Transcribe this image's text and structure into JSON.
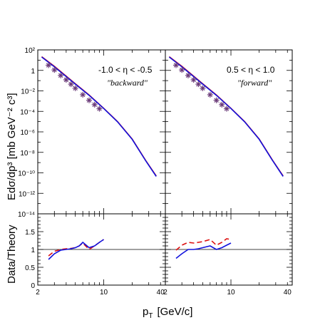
{
  "figure": {
    "xlabel_main": "p",
    "xlabel_sub": "T",
    "xlabel_unit": "[GeV/c]",
    "ylabel_top": "Edσ/dp³  [mb GeV⁻² c³]",
    "ylabel_bottom": "Data/Theory"
  },
  "colors": {
    "theory_red": "#dd1111",
    "theory_blue": "#1111dd",
    "data": "#6a3a78",
    "unity_line": "#000000"
  },
  "chart_data": [
    {
      "id": "top-left",
      "type": "line",
      "annotation": "-1.0 < η < -0.5",
      "annotation_note": "\"backward\"",
      "xscale": "log",
      "yscale": "log",
      "xlim": [
        2,
        45
      ],
      "ylim": [
        1e-14,
        100
      ],
      "xticks": [
        "2",
        "10",
        "40"
      ],
      "yticks": [
        "10²",
        "1",
        "10⁻²",
        "10⁻⁴",
        "10⁻⁶",
        "10⁻⁸",
        "10⁻¹⁰",
        "10⁻¹²",
        "10⁻¹⁴"
      ],
      "series": [
        {
          "style": "solid",
          "color": "red",
          "x": [
            2.2,
            3,
            4,
            5,
            7,
            10,
            14,
            20,
            28,
            36
          ],
          "y": [
            22,
            2.5,
            0.28,
            0.05,
            0.004,
            0.0002,
            1e-05,
            2e-07,
            1.5e-09,
            5e-11
          ]
        },
        {
          "style": "solid",
          "color": "blue",
          "x": [
            2.2,
            3,
            4,
            5,
            7,
            10,
            14,
            20,
            28,
            36
          ],
          "y": [
            20,
            2.2,
            0.25,
            0.046,
            0.0037,
            0.00019,
            9.5e-06,
            1.9e-07,
            1.4e-09,
            4.5e-11
          ]
        }
      ],
      "data_points": {
        "x": [
          2.6,
          3.0,
          3.5,
          4.0,
          4.5,
          5.0,
          6.0,
          7.0,
          8.0,
          9.0
        ],
        "y": [
          3.2,
          1.1,
          0.32,
          0.12,
          0.045,
          0.018,
          0.0042,
          0.0012,
          0.00045,
          0.00018
        ]
      }
    },
    {
      "id": "top-right",
      "type": "line",
      "annotation": "0.5 < η < 1.0",
      "annotation_note": "\"forward\"",
      "xscale": "log",
      "yscale": "log",
      "xlim": [
        2,
        45
      ],
      "ylim": [
        1e-14,
        100
      ],
      "xticks": [
        "2",
        "10",
        "40"
      ],
      "series": [
        {
          "style": "solid",
          "color": "red",
          "x": [
            2.2,
            3,
            4,
            5,
            7,
            10,
            14,
            20,
            28,
            36
          ],
          "y": [
            22,
            2.5,
            0.28,
            0.05,
            0.004,
            0.0002,
            1e-05,
            2e-07,
            1.5e-09,
            5e-11
          ]
        },
        {
          "style": "solid",
          "color": "blue",
          "x": [
            2.2,
            3,
            4,
            5,
            7,
            10,
            14,
            20,
            28,
            36
          ],
          "y": [
            20,
            2.2,
            0.25,
            0.046,
            0.0037,
            0.00019,
            9.5e-06,
            1.9e-07,
            1.4e-09,
            4.5e-11
          ]
        }
      ],
      "data_points": {
        "x": [
          2.6,
          3.0,
          3.5,
          4.0,
          4.5,
          5.0,
          6.0,
          7.0,
          8.0,
          9.0
        ],
        "y": [
          3.2,
          1.1,
          0.32,
          0.12,
          0.045,
          0.018,
          0.0042,
          0.0012,
          0.00045,
          0.00018
        ]
      }
    },
    {
      "id": "bottom-left",
      "type": "line",
      "xscale": "log",
      "xlim": [
        2,
        45
      ],
      "ylim": [
        0,
        2
      ],
      "yticks": [
        "0",
        "0.5",
        "1",
        "1.5"
      ],
      "xticks": [
        "2",
        "10",
        "40"
      ],
      "reference_line": 1,
      "series": [
        {
          "style": "dashed",
          "color": "red",
          "x": [
            2.6,
            3.0,
            3.5,
            4.0,
            4.5,
            5.0,
            5.5,
            6.0,
            7.0,
            8.0,
            9.0,
            10.0
          ],
          "y": [
            0.82,
            0.95,
            1.0,
            1.02,
            1.03,
            1.05,
            1.1,
            1.18,
            1.0,
            1.1,
            1.2,
            1.28
          ]
        },
        {
          "style": "solid",
          "color": "blue",
          "x": [
            2.6,
            3.0,
            3.5,
            4.0,
            4.5,
            5.0,
            5.5,
            6.0,
            7.0,
            8.0,
            9.0,
            10.0
          ],
          "y": [
            0.72,
            0.88,
            0.98,
            1.0,
            1.02,
            1.05,
            1.1,
            1.2,
            1.05,
            1.1,
            1.2,
            1.28
          ]
        }
      ]
    },
    {
      "id": "bottom-right",
      "type": "line",
      "xscale": "log",
      "xlim": [
        2,
        45
      ],
      "ylim": [
        0,
        2
      ],
      "xticks": [
        "2",
        "10",
        "40"
      ],
      "reference_line": 1,
      "series": [
        {
          "style": "dashed",
          "color": "red",
          "x": [
            2.6,
            3.0,
            3.5,
            4.0,
            4.5,
            5.0,
            6.0,
            7.0,
            8.0,
            9.0,
            10.0
          ],
          "y": [
            0.98,
            1.12,
            1.2,
            1.18,
            1.2,
            1.22,
            1.28,
            1.12,
            1.2,
            1.3,
            1.28
          ]
        },
        {
          "style": "solid",
          "color": "blue",
          "x": [
            2.6,
            3.0,
            3.5,
            4.0,
            4.5,
            5.0,
            6.0,
            7.0,
            8.0,
            9.0,
            10.0
          ],
          "y": [
            0.75,
            0.88,
            1.0,
            1.0,
            1.02,
            1.05,
            1.1,
            1.0,
            1.05,
            1.12,
            1.18
          ]
        }
      ]
    }
  ]
}
